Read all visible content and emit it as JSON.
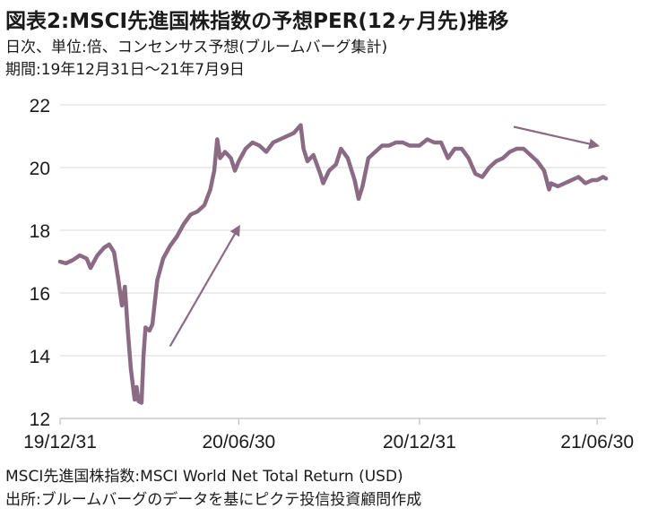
{
  "header": {
    "title": "図表2:MSCI先進国株指数の予想PER(12ヶ月先)推移",
    "subtitle_unit": "日次、単位:倍、コンセンサス予想(ブルームバーグ集計)",
    "subtitle_period": "期間:19年12月31日～21年7月9日"
  },
  "footer": {
    "index_note": "MSCI先進国株指数:MSCI World Net Total Return (USD)",
    "source": "出所:ブルームバーグのデータを基にピクテ投信投資顧問作成"
  },
  "colors": {
    "series": "#8b6a84",
    "arrow": "#8b6a84",
    "grid": "#d9d9d9",
    "axis": "#bfbfbf"
  },
  "chart_data": {
    "type": "line",
    "title": "",
    "xlabel": "",
    "ylabel": "",
    "ylim": [
      12,
      22
    ],
    "yticks": [
      12,
      14,
      16,
      18,
      20,
      22
    ],
    "xlim": [
      "2019-12-31",
      "2021-07-09"
    ],
    "xticks": [
      "19/12/31",
      "20/06/30",
      "20/12/31",
      "21/06/30"
    ],
    "grid": "horizontal",
    "series": [
      {
        "name": "",
        "points": [
          [
            "2019-12-31",
            17.0
          ],
          [
            "2020-01-06",
            16.95
          ],
          [
            "2020-01-13",
            17.05
          ],
          [
            "2020-01-20",
            17.2
          ],
          [
            "2020-01-27",
            17.1
          ],
          [
            "2020-01-31",
            16.8
          ],
          [
            "2020-02-07",
            17.2
          ],
          [
            "2020-02-14",
            17.45
          ],
          [
            "2020-02-19",
            17.55
          ],
          [
            "2020-02-24",
            17.3
          ],
          [
            "2020-02-28",
            16.5
          ],
          [
            "2020-03-03",
            15.6
          ],
          [
            "2020-03-06",
            16.2
          ],
          [
            "2020-03-09",
            14.8
          ],
          [
            "2020-03-12",
            13.6
          ],
          [
            "2020-03-16",
            12.6
          ],
          [
            "2020-03-18",
            13.0
          ],
          [
            "2020-03-20",
            12.55
          ],
          [
            "2020-03-23",
            12.5
          ],
          [
            "2020-03-25",
            14.0
          ],
          [
            "2020-03-27",
            14.9
          ],
          [
            "2020-03-31",
            14.8
          ],
          [
            "2020-04-03",
            15.0
          ],
          [
            "2020-04-08",
            16.4
          ],
          [
            "2020-04-14",
            17.1
          ],
          [
            "2020-04-21",
            17.5
          ],
          [
            "2020-04-28",
            17.8
          ],
          [
            "2020-05-05",
            18.2
          ],
          [
            "2020-05-12",
            18.5
          ],
          [
            "2020-05-19",
            18.6
          ],
          [
            "2020-05-26",
            18.8
          ],
          [
            "2020-06-01",
            19.3
          ],
          [
            "2020-06-05",
            19.9
          ],
          [
            "2020-06-08",
            20.9
          ],
          [
            "2020-06-11",
            20.3
          ],
          [
            "2020-06-16",
            20.5
          ],
          [
            "2020-06-22",
            20.3
          ],
          [
            "2020-06-26",
            19.9
          ],
          [
            "2020-06-30",
            20.2
          ],
          [
            "2020-07-07",
            20.6
          ],
          [
            "2020-07-14",
            20.8
          ],
          [
            "2020-07-21",
            20.7
          ],
          [
            "2020-07-28",
            20.5
          ],
          [
            "2020-08-04",
            20.8
          ],
          [
            "2020-08-11",
            20.9
          ],
          [
            "2020-08-18",
            21.0
          ],
          [
            "2020-08-25",
            21.1
          ],
          [
            "2020-09-01",
            21.35
          ],
          [
            "2020-09-04",
            20.6
          ],
          [
            "2020-09-08",
            20.2
          ],
          [
            "2020-09-14",
            20.4
          ],
          [
            "2020-09-21",
            19.8
          ],
          [
            "2020-09-24",
            19.5
          ],
          [
            "2020-09-30",
            19.9
          ],
          [
            "2020-10-07",
            20.1
          ],
          [
            "2020-10-12",
            20.6
          ],
          [
            "2020-10-19",
            20.3
          ],
          [
            "2020-10-26",
            19.6
          ],
          [
            "2020-10-30",
            19.0
          ],
          [
            "2020-11-03",
            19.4
          ],
          [
            "2020-11-09",
            20.3
          ],
          [
            "2020-11-16",
            20.5
          ],
          [
            "2020-11-23",
            20.7
          ],
          [
            "2020-11-30",
            20.7
          ],
          [
            "2020-12-07",
            20.8
          ],
          [
            "2020-12-14",
            20.8
          ],
          [
            "2020-12-21",
            20.7
          ],
          [
            "2020-12-31",
            20.7
          ],
          [
            "2021-01-08",
            20.9
          ],
          [
            "2021-01-15",
            20.8
          ],
          [
            "2021-01-22",
            20.8
          ],
          [
            "2021-01-29",
            20.3
          ],
          [
            "2021-02-05",
            20.6
          ],
          [
            "2021-02-12",
            20.6
          ],
          [
            "2021-02-19",
            20.3
          ],
          [
            "2021-02-26",
            19.8
          ],
          [
            "2021-03-05",
            19.7
          ],
          [
            "2021-03-12",
            20.0
          ],
          [
            "2021-03-19",
            20.2
          ],
          [
            "2021-03-26",
            20.3
          ],
          [
            "2021-04-02",
            20.5
          ],
          [
            "2021-04-09",
            20.6
          ],
          [
            "2021-04-16",
            20.6
          ],
          [
            "2021-04-23",
            20.4
          ],
          [
            "2021-04-30",
            20.2
          ],
          [
            "2021-05-07",
            19.9
          ],
          [
            "2021-05-12",
            19.3
          ],
          [
            "2021-05-14",
            19.5
          ],
          [
            "2021-05-21",
            19.4
          ],
          [
            "2021-05-28",
            19.5
          ],
          [
            "2021-06-04",
            19.6
          ],
          [
            "2021-06-11",
            19.7
          ],
          [
            "2021-06-18",
            19.5
          ],
          [
            "2021-06-25",
            19.6
          ],
          [
            "2021-06-30",
            19.6
          ],
          [
            "2021-07-06",
            19.7
          ],
          [
            "2021-07-09",
            19.65
          ]
        ]
      }
    ],
    "annotations": [
      {
        "type": "arrow",
        "from": [
          "2020-04-21",
          14.3
        ],
        "to": [
          "2020-06-30",
          18.1
        ]
      },
      {
        "type": "arrow",
        "from": [
          "2021-04-06",
          21.3
        ],
        "to": [
          "2021-06-30",
          20.7
        ]
      }
    ]
  }
}
